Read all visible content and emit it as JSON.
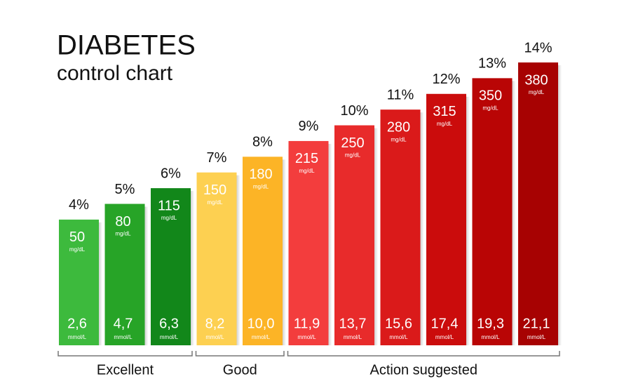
{
  "chart_data": {
    "type": "bar",
    "title": "DIABETES",
    "subtitle": "control chart",
    "values": [
      4,
      5,
      6,
      7,
      8,
      9,
      10,
      11,
      12,
      13,
      14
    ],
    "value_labels": [
      "4%",
      "5%",
      "6%",
      "7%",
      "8%",
      "9%",
      "10%",
      "11%",
      "12%",
      "13%",
      "14%"
    ],
    "ylim": [
      -4,
      14
    ],
    "colors": [
      "#3dba3d",
      "#27a427",
      "#12871a",
      "#fdd051",
      "#fcb426",
      "#f33d3d",
      "#e82b2b",
      "#da1a1a",
      "#cb0c0c",
      "#b90505",
      "#a70202"
    ],
    "mg_dl": {
      "unit": "mg/dL",
      "values": [
        50,
        80,
        115,
        150,
        180,
        215,
        250,
        280,
        315,
        350,
        380
      ]
    },
    "mmol_l": {
      "unit": "mmol/L",
      "values": [
        2.6,
        4.7,
        6.3,
        8.2,
        10.0,
        11.9,
        13.7,
        15.6,
        17.4,
        19.3,
        21.1
      ],
      "value_labels": [
        "2,6",
        "4,7",
        "6,3",
        "8,2",
        "10,0",
        "11,9",
        "13,7",
        "15,6",
        "17,4",
        "19,3",
        "21,1"
      ]
    },
    "groups": [
      {
        "name": "Excellent",
        "size": 3
      },
      {
        "name": "Good",
        "size": 2
      },
      {
        "name": "Action suggested",
        "size": 6
      }
    ]
  }
}
